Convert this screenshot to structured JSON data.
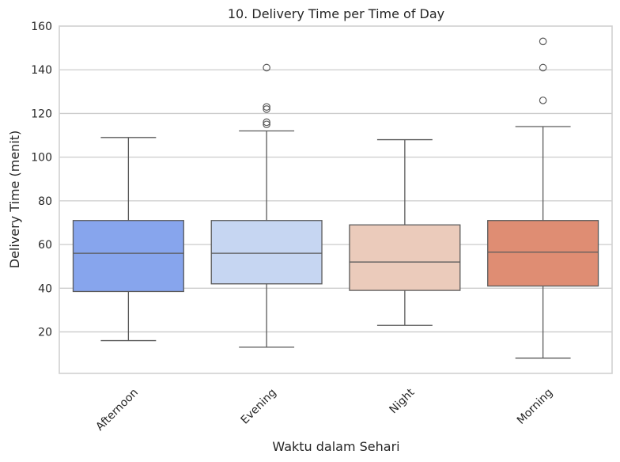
{
  "chart_data": {
    "type": "box",
    "title": "10. Delivery Time per Time of Day",
    "xlabel": "Waktu dalam Sehari",
    "ylabel": "Delivery Time (menit)",
    "ylim": [
      1,
      160
    ],
    "yticks": [
      20,
      40,
      60,
      80,
      100,
      120,
      140,
      160
    ],
    "grid": "horizontal",
    "categories": [
      "Afternoon",
      "Evening",
      "Night",
      "Morning"
    ],
    "boxes": [
      {
        "category": "Afternoon",
        "whisker_low": 16,
        "q1": 38.5,
        "median": 56,
        "q3": 71,
        "whisker_high": 109,
        "outliers": [],
        "color": "#87a5ed"
      },
      {
        "category": "Evening",
        "whisker_low": 13,
        "q1": 42,
        "median": 56,
        "q3": 71,
        "whisker_high": 112,
        "outliers": [
          115,
          116,
          122,
          123,
          141
        ],
        "color": "#c6d6f2"
      },
      {
        "category": "Night",
        "whisker_low": 23,
        "q1": 39,
        "median": 52,
        "q3": 69,
        "whisker_high": 108,
        "outliers": [],
        "color": "#ebcbbb"
      },
      {
        "category": "Morning",
        "whisker_low": 8,
        "q1": 41,
        "median": 56.5,
        "q3": 71,
        "whisker_high": 114,
        "outliers": [
          126,
          141,
          153
        ],
        "color": "#df8d73"
      }
    ]
  }
}
